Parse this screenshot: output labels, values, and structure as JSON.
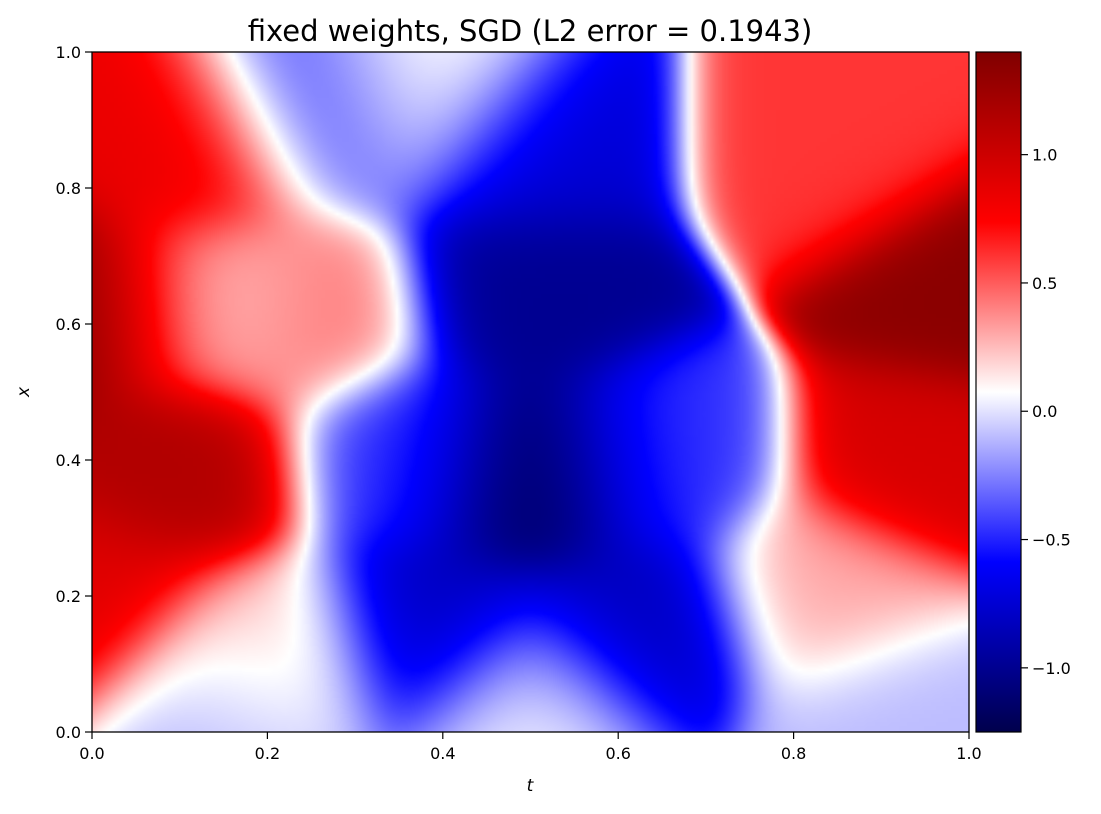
{
  "chart_data": {
    "type": "heatmap",
    "title": "fixed weights, SGD (L2 error = 0.1943)",
    "xlabel": "t",
    "ylabel": "x",
    "xlim": [
      0.0,
      1.0
    ],
    "ylim": [
      0.0,
      1.0
    ],
    "x_ticks": [
      0.0,
      0.2,
      0.4,
      0.6,
      0.8,
      1.0
    ],
    "y_ticks": [
      0.0,
      0.2,
      0.4,
      0.6,
      0.8,
      1.0
    ],
    "x_tick_labels": [
      "0.0",
      "0.2",
      "0.4",
      "0.6",
      "0.8",
      "1.0"
    ],
    "y_tick_labels": [
      "0.0",
      "0.2",
      "0.4",
      "0.6",
      "0.8",
      "1.0"
    ],
    "colorbar": {
      "colormap": "seismic",
      "vmin": -1.25,
      "vmax": 1.4,
      "ticks": [
        -1.0,
        -0.5,
        0.0,
        0.5,
        1.0
      ],
      "tick_labels": [
        "−1.0",
        "−0.5",
        "0.0",
        "0.5",
        "1.0"
      ]
    },
    "grid": false,
    "features": [
      {
        "t": 0.0,
        "x": 0.62,
        "value": 1.35
      },
      {
        "t": 0.0,
        "x": 0.2,
        "value": 0.9
      },
      {
        "t": 0.1,
        "x": 0.38,
        "value": 1.15
      },
      {
        "t": 0.12,
        "x": 0.84,
        "value": 0.85
      },
      {
        "t": 0.14,
        "x": 0.63,
        "value": 0.15
      },
      {
        "t": 0.24,
        "x": 0.62,
        "value": 0.45
      },
      {
        "t": 0.2,
        "x": 0.12,
        "value": 0.3
      },
      {
        "t": 0.16,
        "x": 0.06,
        "value": -0.15
      },
      {
        "t": 0.27,
        "x": 0.9,
        "value": -0.45
      },
      {
        "t": 0.36,
        "x": 0.4,
        "value": -0.45
      },
      {
        "t": 0.5,
        "x": 0.38,
        "value": -1.25
      },
      {
        "t": 0.5,
        "x": 0.65,
        "value": -1.0
      },
      {
        "t": 0.5,
        "x": 0.85,
        "value": -0.75
      },
      {
        "t": 0.38,
        "x": 0.15,
        "value": -0.85
      },
      {
        "t": 0.62,
        "x": 0.15,
        "value": -0.85
      },
      {
        "t": 0.5,
        "x": 0.05,
        "value": 0.05
      },
      {
        "t": 0.64,
        "x": 0.4,
        "value": -0.45
      },
      {
        "t": 0.38,
        "x": 0.93,
        "value": 0.15
      },
      {
        "t": 0.85,
        "x": 0.85,
        "value": 0.6
      },
      {
        "t": 0.84,
        "x": 0.2,
        "value": 0.3
      },
      {
        "t": 0.95,
        "x": 0.4,
        "value": 0.95
      },
      {
        "t": 1.0,
        "x": 0.65,
        "value": 1.35
      },
      {
        "t": 0.92,
        "x": 0.03,
        "value": -0.1
      }
    ]
  }
}
